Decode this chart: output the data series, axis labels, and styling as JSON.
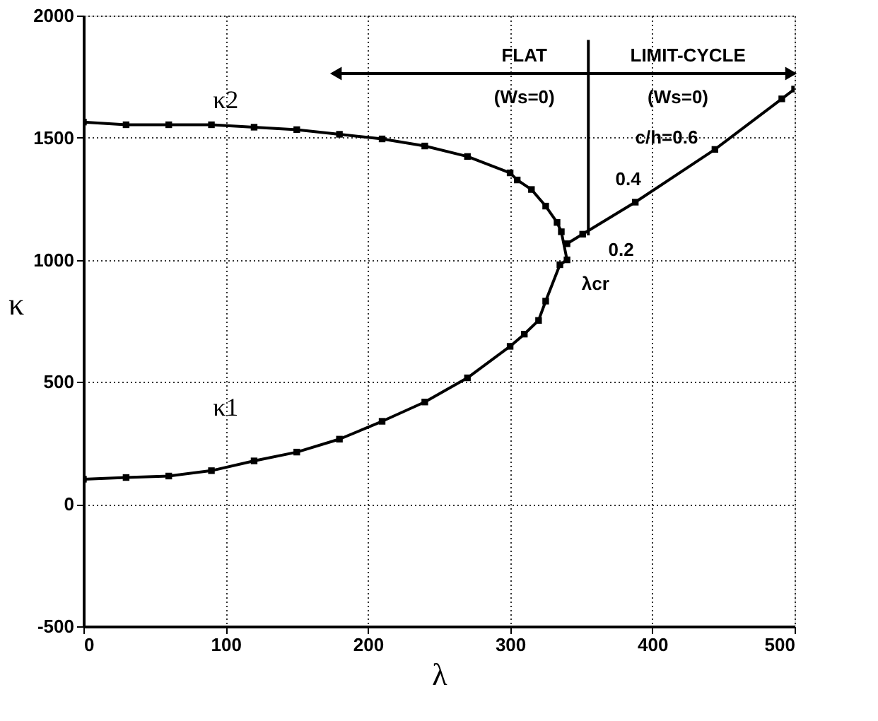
{
  "chart_data": {
    "type": "line",
    "xlabel": "λ",
    "ylabel": "κ",
    "xlim": [
      0,
      500
    ],
    "ylim": [
      -500,
      2000
    ],
    "xticks": [
      0,
      100,
      200,
      300,
      400,
      500
    ],
    "yticks": [
      -500,
      0,
      500,
      1000,
      1500,
      2000
    ],
    "grid": true,
    "marker": "square",
    "line_style": "solid",
    "series": [
      {
        "color": "#000000",
        "x": [
          0,
          30,
          60,
          90,
          120,
          150,
          180,
          210,
          240,
          270,
          300,
          310,
          320,
          325,
          335,
          340,
          336,
          333,
          325,
          315,
          305,
          300,
          270,
          240,
          210,
          180,
          150,
          120,
          90,
          60,
          30,
          0
        ],
        "values": [
          102,
          109,
          115,
          137,
          177,
          213,
          266,
          339,
          418,
          517,
          646,
          696,
          752,
          831,
          980,
          1000,
          1115,
          1153,
          1220,
          1288,
          1327,
          1356,
          1423,
          1466,
          1495,
          1514,
          1533,
          1543,
          1553,
          1553,
          1553,
          1564
        ]
      },
      {
        "color": "#000000",
        "x": [
          340,
          351,
          388,
          444,
          491,
          500
        ],
        "values": [
          1066,
          1105,
          1236,
          1452,
          1659,
          1699
        ]
      }
    ],
    "annotations": [
      "κ2",
      "κ1",
      "λcr",
      "c/h=0.6",
      "0.4",
      "0.2",
      "FLAT",
      "(Ws=0)",
      "LIMIT-CYCLE",
      "(Ws=0)"
    ]
  }
}
